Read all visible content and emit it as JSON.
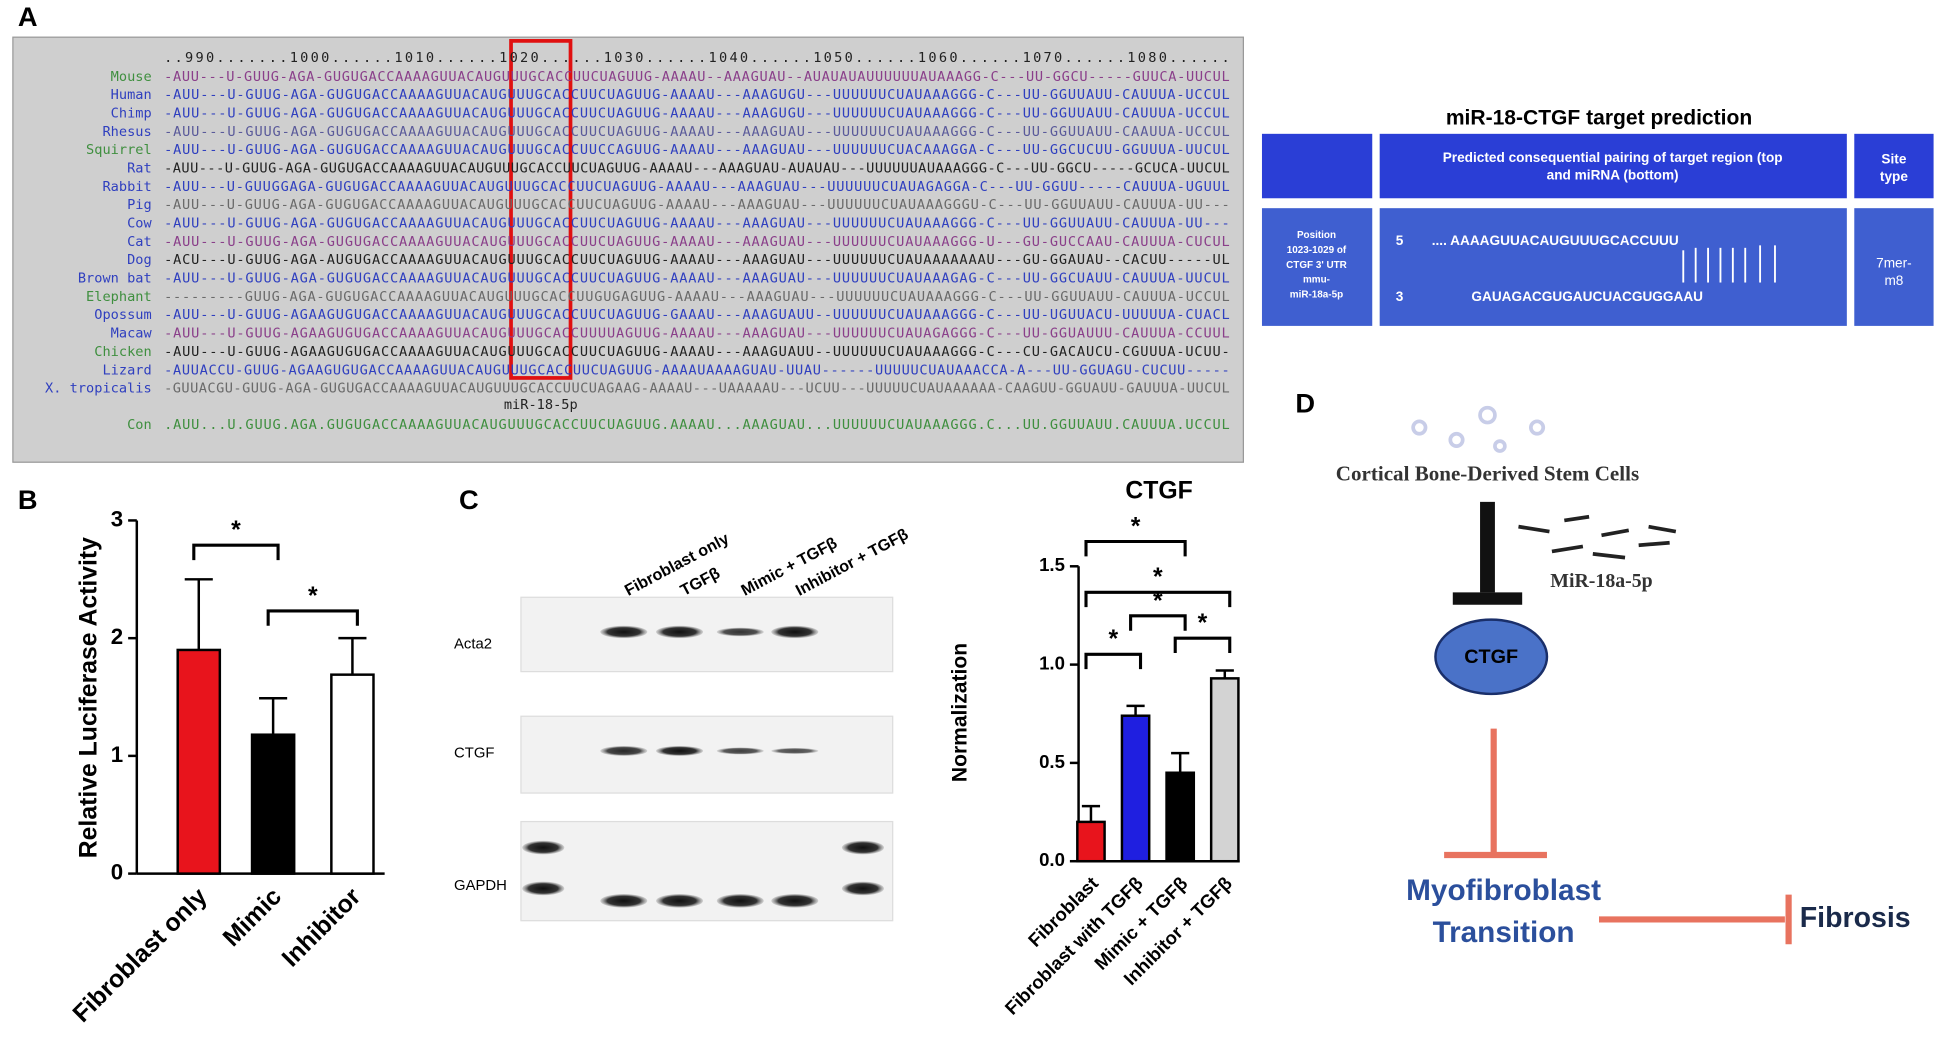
{
  "panel_labels": [
    "A",
    "B",
    "C",
    "D"
  ],
  "alignment": {
    "ruler": "..990.......1000......1010......1020......1030......1040......1050......1060......1070......1080......",
    "rows": [
      {
        "species": "Mouse",
        "species_color": "#3f8f3f",
        "color": "#8a3f8a",
        "sequence": "-AUU---U-GUUG-AGA-GUGUGACCAAAAGUUACAUGUUUGCACCUUCUAGUUG-AAAAU--AAAGUAU--AUAUAUAUUUUUUAUAAAGG-C---UU-GGCU-----GUUCA-UUCUL"
      },
      {
        "species": "Human",
        "species_color": "#2f3fbf",
        "color": "#2f3fbf",
        "sequence": "-AUU---U-GUUG-AGA-GUGUGACCAAAAGUUACAUGUUUGCACCUUCUAGUUG-AAAAU---AAAGUGU---UUUUUUCUAUAAAGGG-C---UU-GGUUAUU-CAUUUA-UCCUL"
      },
      {
        "species": "Chimp",
        "species_color": "#2f3fbf",
        "color": "#2f3fbf",
        "sequence": "-AUU---U-GUUG-AGA-GUGUGACCAAAAGUUACAUGUUUGCACCUUCUAGUUG-AAAAU---AAAGUGU---UUUUUUCUAUAAAGGG-C---UU-GGUUAUU-CAUUUA-UCCUL"
      },
      {
        "species": "Rhesus",
        "species_color": "#2f3fbf",
        "color": "#5a5a9a",
        "sequence": "-AUU---U-GUUG-AGA-GUGUGACCAAAAGUUACAUGUUUGCACCUUCUAGUUG-AAAAU---AAAGUAU---UUUUUUCUAUAAAGGG-C---UU-GGUUAUU-CAAUUA-UCCUL"
      },
      {
        "species": "Squirrel",
        "species_color": "#3f8f3f",
        "color": "#2f3fbf",
        "sequence": "-AUU---U-GUUG-AGA-GUGUGACCAAAAGUUACAUGUUUGCACCUUCCAGUUG-AAAAU---AAAGUAU---UUUUUUCUACAAAGGA-C---UU-GGCUCUU-GGUUUA-UUCUL"
      },
      {
        "species": "Rat",
        "species_color": "#2f3fbf",
        "color": "#222222",
        "sequence": "-AUU---U-GUUG-AGA-GUGUGACCAAAAGUUACAUGUUUGCACCUUCUAGUUG-AAAAU---AAAGUAU-AUAUAU---UUUUUUAUAAAGGG-C---UU-GGCU-----GCUCA-UUCUL"
      },
      {
        "species": "Rabbit",
        "species_color": "#2f3fbf",
        "color": "#2f3fbf",
        "sequence": "-AUU---U-GUUGGAGA-GUGUGACCAAAAGUUACAUGUUUGCACCUUCUAGUUG-AAAAU---AAAGUAU---UUUUUUCUAUAGAGGA-C---UU-GGUU-----CAUUUA-UGUUL"
      },
      {
        "species": "Pig",
        "species_color": "#2f3fbf",
        "color": "#6a6a6a",
        "sequence": "-AUU---U-GUUG-AGA-GUGUGACCAAAAGUUACAUGUUUGCACCUUCUAGUUG-AAAAU---AAAGUAU---UUUUUUCUAUAAAGGGU-C---UU-GGUUAUU-CAUUUA-UU---"
      },
      {
        "species": "Cow",
        "species_color": "#2f3fbf",
        "color": "#2f3fbf",
        "sequence": "-AUU---U-GUUG-AGA-GUGUGACCAAAAGUUACAUGUUUGCACCUUCUAGUUG-AAAAU---AAAGUAU---UUUUUUCUAUAAAGGG-C---UU-GGUUAUU-CAUUUA-UU---"
      },
      {
        "species": "Cat",
        "species_color": "#2f3fbf",
        "color": "#8a3f8a",
        "sequence": "-AUU---U-GUUG-AGA-GUGUGACCAAAAGUUACAUGUUUGCACCUUCUAGUUG-AAAAU---AAAGUAU---UUUUUUCUAUAAAGGG-U---GU-GUCCAAU-CAUUUA-CUCUL"
      },
      {
        "species": "Dog",
        "species_color": "#2f3fbf",
        "color": "#222222",
        "sequence": "-ACU---U-GUUG-AGA-AUGUGACCAAAAGUUACAUGUUUGCACCUUCUAGUUG-AAAAU---AAAGUAU---UUUUUUCUAUAAAAAAAU---GU-GGAUAU--CACUU-----UL"
      },
      {
        "species": "Brown bat",
        "species_color": "#2f3fbf",
        "color": "#2f3fbf",
        "sequence": "-AUU---U-GUUG-AGA-GUGUGACCAAAAGUUACAUGUUUGCACCUUCUAGUUG-AAAAU---AAAGUAU---UUUUUUCUAUAAAGAG-C---UU-GGCUAUU-CAUUUA-UUCUL"
      },
      {
        "species": "Elephant",
        "species_color": "#3f8f3f",
        "color": "#6a6a6a",
        "sequence": "---------GUUG-AGA-GUGUGACCAAAAGUUACAUGUUUGCACCUUGUGAGUUG-AAAAU---AAAGUAU---UUUUUUCUAUAAAGGG-C---UU-GGUUAUU-CAUUUA-UCCUL"
      },
      {
        "species": "Opossum",
        "species_color": "#2f3fbf",
        "color": "#2f3fbf",
        "sequence": "-AUU---U-GUUG-AGAAGUGUGACCAAAAGUUACAUGUUUGCACCUUCUAGUUG-GAAAU---AAAGUAUU--UUUUUUCUAUAAAGGG-C---UU-UGUUACU-UUUUUA-CUACL"
      },
      {
        "species": "Macaw",
        "species_color": "#2f3fbf",
        "color": "#8a3f8a",
        "sequence": "-AUU---U-GUUG-AGAAGUGUGACCAAAAGUUACAUGUUUGCACCUUUUAGUUG-AAAAU---AAAGUAU---UUUUUUCUAUAGAGGG-C---UU-GGUAUUU-CAUUUA-CCUUL"
      },
      {
        "species": "Chicken",
        "species_color": "#3f8f3f",
        "color": "#222222",
        "sequence": "-AUU---U-GUUG-AGAAGUGUGACCAAAAGUUACAUGUUUGCACCUUCUAGUUG-AAAAU---AAAGUAUU--UUUUUUCUAUAAAGGG-C---CU-GACAUCU-CGUUUA-UCUU-"
      },
      {
        "species": "Lizard",
        "species_color": "#2f3fbf",
        "color": "#2f3fbf",
        "sequence": "-AUUACCU-GUUG-AGAAGUGUGACCAAAAGUUACAUGUUUGCACCUUCUAGUUG-AAAAUAAAAGUAU-UUAU------UUUUUCUAUAAACCA-A---UU-GGUAGU-CUCUU-----"
      },
      {
        "species": "X. tropicalis",
        "species_color": "#2f3fbf",
        "color": "#6a6a6a",
        "sequence": "-GUUACGU-GUUG-AGA-GUGUGACCAAAAGUUACAUGUUUGCACCUUCUAGAAG-AAAAU---UAAAAAU---UCUU---UUUUUCUAUAAAAAA-CAAGUU-GGUAUU-GAUUUA-UUCUL"
      }
    ],
    "mirna_label": "miR-18-5p",
    "consensus": {
      "species": "Con",
      "species_color": "#3f8f3f",
      "color": "#3f8f3f",
      "sequence": ".AUU...U.GUUG.AGA.GUGUGACCAAAAGUUACAUGUUUGCACCUUCUAGUUG.AAAAU...AAAGUAU...UUUUUUCUAUAAAGGG.C...UU.GGUUAUU.CAUUUA.UCCUL"
    }
  },
  "target_prediction": {
    "title": "miR-18-CTGF target prediction",
    "header": {
      "pairing": [
        "Predicted consequential pairing of target region (top",
        "and miRNA (bottom)"
      ],
      "site_type": [
        "Site",
        "type"
      ]
    },
    "row": {
      "position": [
        "Position",
        "1023-1029 of",
        "CTGF 3' UTR",
        "mmu-",
        "miR-18a-5p"
      ],
      "seq5_label": "5",
      "seq5": "....     AAAAGUUACAUGUUUGCACCUUU",
      "seq3_label": "3",
      "seq3": "GAUAGACGUGAUCUACGUGGAAU",
      "site_type": [
        "7mer-",
        "m8"
      ]
    }
  },
  "chart_data": [
    {
      "type": "bar",
      "ylabel": "Relative Luciferase Activity",
      "categories": [
        "Fibroblast only",
        "Mimic",
        "Inhibitor"
      ],
      "values": [
        1.9,
        1.18,
        1.69
      ],
      "errors": [
        0.6,
        0.31,
        0.31
      ],
      "colors": [
        "#e8141c",
        "#000000",
        "#ffffff"
      ],
      "ylim": [
        0,
        3
      ],
      "yticks": [
        0,
        1,
        2,
        3
      ],
      "annotations": [
        "*",
        "*"
      ]
    },
    {
      "type": "bar",
      "title": "CTGF",
      "ylabel": "Normalization",
      "categories": [
        "Fibroblast",
        "Fibroblast with TGFβ",
        "Mimic + TGFβ",
        "Inhibitor + TGFβ"
      ],
      "values": [
        0.2,
        0.74,
        0.45,
        0.93
      ],
      "errors": [
        0.08,
        0.05,
        0.1,
        0.04
      ],
      "colors": [
        "#e8141c",
        "#1f1fe0",
        "#000000",
        "#d3d3d3"
      ],
      "ylim": [
        0,
        1.5
      ],
      "yticks": [
        {
          "value": 0,
          "label": "0.0"
        },
        0.5,
        {
          "value": 1,
          "label": "1.0"
        },
        1.5
      ],
      "annotations": [
        "*",
        "*",
        "*",
        "*",
        "*"
      ]
    }
  ],
  "blot": {
    "lanes": [
      "Fibroblast only",
      "TGFβ",
      "Mimic + TGFβ",
      "Inhibitor + TGFβ"
    ],
    "rows": [
      "Acta2",
      "CTGF",
      "GAPDH"
    ]
  },
  "diagram": {
    "source": "Cortical Bone-Derived Stem Cells",
    "mirna": "MiR-18a-5p",
    "target": "CTGF",
    "process": [
      "Myofibroblast",
      "Transition"
    ],
    "outcome": "Fibrosis"
  }
}
